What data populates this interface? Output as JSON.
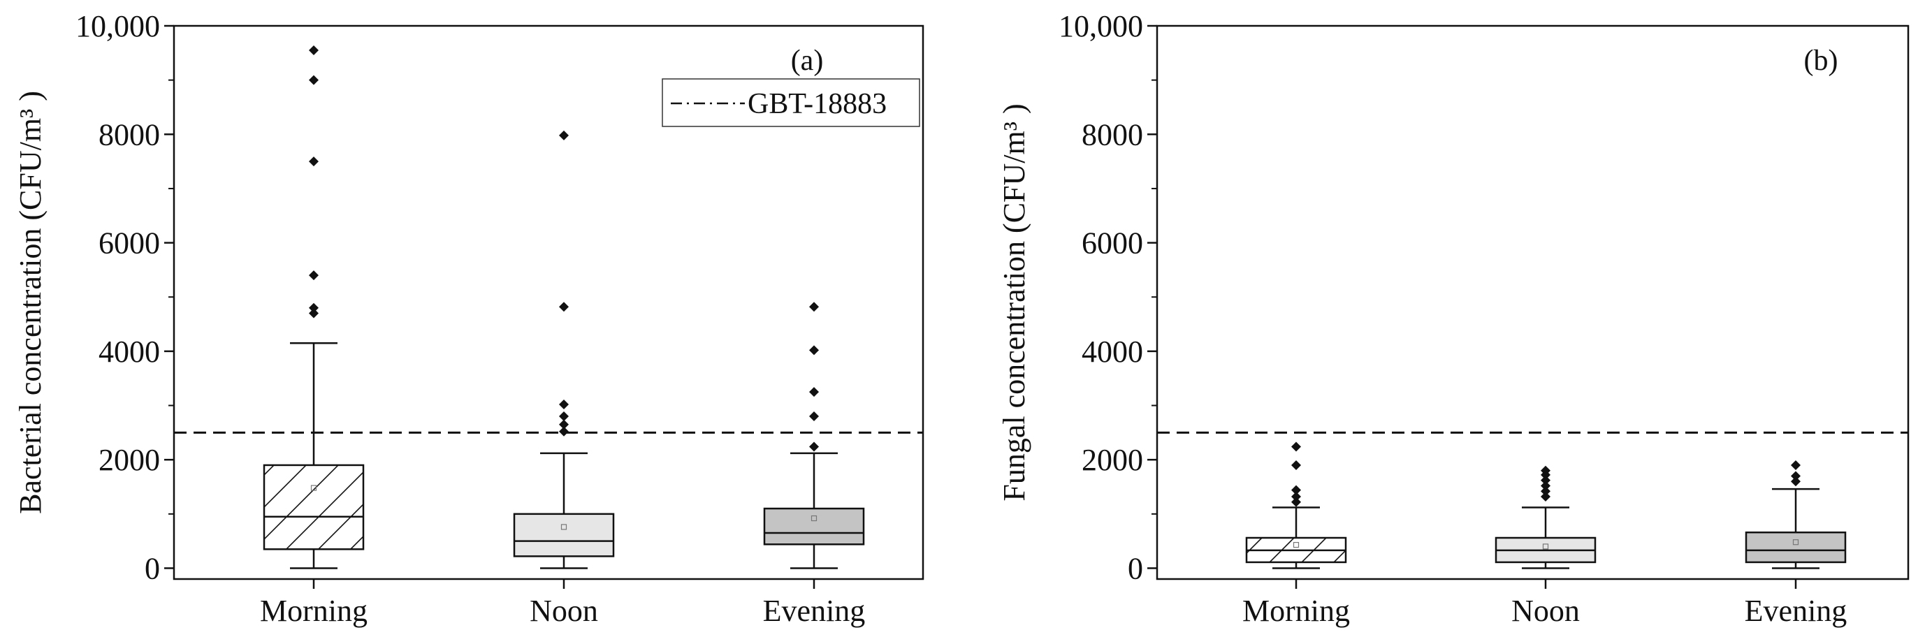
{
  "chart_data": [
    {
      "type": "box",
      "panel_label": "(a)",
      "ylabel": "Bacterial concentration (CFU/m³ )",
      "categories": [
        "Morning",
        "Noon",
        "Evening"
      ],
      "ylim": [
        -200,
        10000
      ],
      "yticks": [
        0,
        2000,
        4000,
        6000,
        8000,
        10000
      ],
      "ytick_labels": [
        "0",
        "2000",
        "4000",
        "6000",
        "8000",
        "10,000"
      ],
      "reference_line": {
        "value": 2500,
        "label": "GBT-18883"
      },
      "legend": {
        "position": "top-right",
        "entries": [
          "GBT-18883"
        ]
      },
      "boxes": [
        {
          "category": "Morning",
          "fill": "hatched",
          "whisker_low": 0,
          "q1": 350,
          "median": 950,
          "q3": 1900,
          "whisker_high": 4150,
          "mean": 1480,
          "outliers": [
            4700,
            4800,
            5400,
            7500,
            9000,
            9550
          ]
        },
        {
          "category": "Noon",
          "fill": "light-gray",
          "whisker_low": 0,
          "q1": 220,
          "median": 500,
          "q3": 1000,
          "whisker_high": 2120,
          "mean": 760,
          "outliers": [
            2520,
            2650,
            2800,
            3020,
            4820,
            7980
          ]
        },
        {
          "category": "Evening",
          "fill": "gray",
          "whisker_low": 0,
          "q1": 440,
          "median": 650,
          "q3": 1100,
          "whisker_high": 2120,
          "mean": 920,
          "outliers": [
            2240,
            2800,
            3250,
            4020,
            4820
          ]
        }
      ]
    },
    {
      "type": "box",
      "panel_label": "(b)",
      "ylabel": "Fungal concentration (CFU/m³ )",
      "categories": [
        "Morning",
        "Noon",
        "Evening"
      ],
      "ylim": [
        -200,
        10000
      ],
      "yticks": [
        0,
        2000,
        4000,
        6000,
        8000,
        10000
      ],
      "ytick_labels": [
        "0",
        "2000",
        "4000",
        "6000",
        "8000",
        "10,000"
      ],
      "reference_line": {
        "value": 2500,
        "label": ""
      },
      "boxes": [
        {
          "category": "Morning",
          "fill": "hatched",
          "whisker_low": 0,
          "q1": 110,
          "median": 330,
          "q3": 560,
          "whisker_high": 1120,
          "mean": 430,
          "outliers": [
            1220,
            1320,
            1440,
            1900,
            2240
          ]
        },
        {
          "category": "Noon",
          "fill": "light-gray",
          "whisker_low": 0,
          "q1": 110,
          "median": 330,
          "q3": 560,
          "whisker_high": 1120,
          "mean": 400,
          "outliers": [
            1320,
            1420,
            1520,
            1620,
            1720,
            1800
          ]
        },
        {
          "category": "Evening",
          "fill": "gray",
          "whisker_low": 0,
          "q1": 110,
          "median": 330,
          "q3": 660,
          "whisker_high": 1460,
          "mean": 480,
          "outliers": [
            1600,
            1700,
            1900
          ]
        }
      ]
    }
  ]
}
